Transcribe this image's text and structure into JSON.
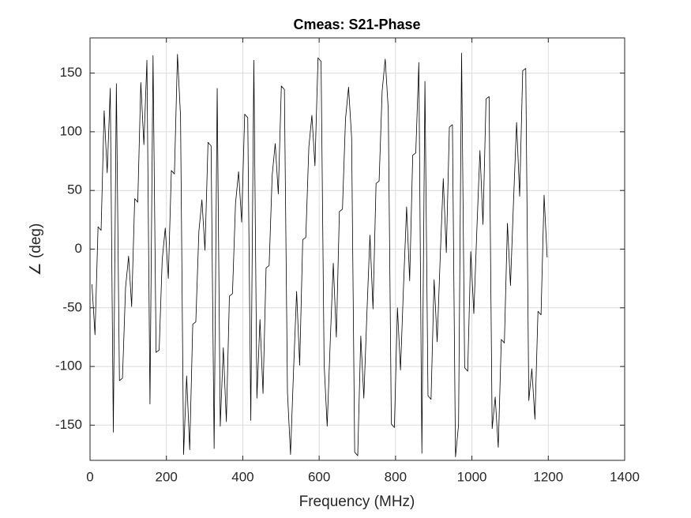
{
  "chart_data": {
    "type": "line",
    "title": "Cmeas: S21-Phase",
    "xlabel": "Frequency (MHz)",
    "ylabel": "∠ (deg)",
    "x": [
      5,
      13,
      21,
      29,
      37,
      45,
      53,
      61,
      69,
      77,
      85,
      93,
      101,
      109,
      117,
      125,
      133,
      141,
      149,
      157,
      165,
      173,
      181,
      189,
      197,
      205,
      213,
      221,
      229,
      237,
      245,
      253,
      261,
      269,
      277,
      285,
      293,
      301,
      309,
      317,
      325,
      333,
      341,
      349,
      357,
      365,
      373,
      381,
      389,
      397,
      405,
      413,
      421,
      429,
      437,
      445,
      453,
      461,
      469,
      477,
      485,
      493,
      501,
      509,
      517,
      525,
      533,
      541,
      549,
      557,
      565,
      573,
      581,
      589,
      597,
      605,
      613,
      621,
      629,
      637,
      645,
      653,
      661,
      669,
      677,
      685,
      693,
      701,
      709,
      717,
      725,
      733,
      741,
      749,
      757,
      765,
      773,
      781,
      789,
      797,
      805,
      813,
      821,
      829,
      837,
      845,
      853,
      861,
      869,
      877,
      885,
      893,
      901,
      909,
      917,
      925,
      933,
      941,
      949,
      957,
      965,
      973,
      981,
      989,
      997,
      1005,
      1013,
      1021,
      1029,
      1037,
      1045,
      1053,
      1061,
      1069,
      1077,
      1085,
      1093,
      1101,
      1109,
      1117,
      1125,
      1133,
      1141,
      1149,
      1157,
      1165,
      1173,
      1181,
      1189,
      1197
    ],
    "series": [
      {
        "name": "S21",
        "color": "#000000",
        "values": [
          -30,
          -73,
          19,
          16,
          118,
          65,
          137,
          -156,
          141,
          -112,
          -110,
          -33,
          -6,
          -49,
          43,
          40,
          142,
          89,
          161,
          -132,
          165,
          -88,
          -86,
          -9,
          18,
          -25,
          67,
          64,
          166,
          113,
          -175,
          -108,
          -171,
          -64,
          -62,
          15,
          42,
          -1,
          91,
          88,
          -170,
          137,
          -151,
          -84,
          -147,
          -40,
          -38,
          39,
          66,
          23,
          115,
          112,
          -146,
          161,
          -127,
          -60,
          -123,
          -16,
          -14,
          63,
          90,
          47,
          139,
          136,
          -122,
          -175,
          -103,
          -36,
          -99,
          8,
          10,
          87,
          114,
          71,
          163,
          160,
          -98,
          -151,
          -79,
          -12,
          -75,
          32,
          34,
          111,
          138,
          95,
          -173,
          -176,
          -74,
          -127,
          -55,
          12,
          -51,
          56,
          58,
          135,
          162,
          119,
          -149,
          -152,
          -50,
          -103,
          -31,
          36,
          -27,
          80,
          82,
          159,
          -174,
          143,
          -125,
          -128,
          -26,
          -79,
          -7,
          60,
          -3,
          104,
          106,
          -177,
          -150,
          167,
          -101,
          -104,
          -2,
          -55,
          17,
          84,
          21,
          128,
          130,
          -153,
          -126,
          -169,
          -77,
          -80,
          22,
          -31,
          41,
          108,
          45,
          152,
          154,
          -129,
          -102,
          -145,
          -53,
          -56,
          46,
          -7
        ]
      }
    ],
    "xlim": [
      0,
      1400
    ],
    "xticks": [
      0,
      200,
      400,
      600,
      800,
      1000,
      1200,
      1400
    ],
    "ylim": [
      -180,
      180
    ],
    "yticks": [
      -150,
      -100,
      -50,
      0,
      50,
      100,
      150
    ],
    "grid": true
  }
}
